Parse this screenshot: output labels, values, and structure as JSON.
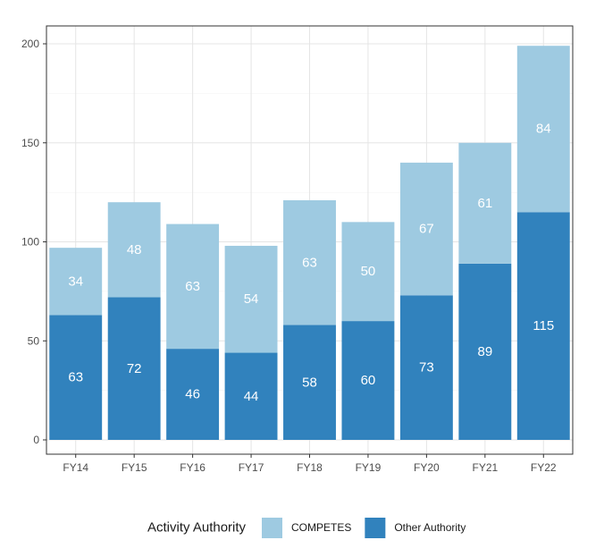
{
  "chart_data": {
    "type": "bar",
    "stacked": true,
    "categories": [
      "FY14",
      "FY15",
      "FY16",
      "FY17",
      "FY18",
      "FY19",
      "FY20",
      "FY21",
      "FY22"
    ],
    "series": [
      {
        "name": "Other Authority",
        "values": [
          63,
          72,
          46,
          44,
          58,
          60,
          73,
          89,
          115
        ],
        "color": "#3182bd"
      },
      {
        "name": "COMPETES",
        "values": [
          34,
          48,
          63,
          54,
          63,
          50,
          67,
          61,
          84
        ],
        "color": "#9ecae1"
      }
    ],
    "title": "",
    "xlabel": "",
    "ylabel": "",
    "ylim": [
      0,
      200
    ],
    "yticks": [
      0,
      50,
      100,
      150,
      200
    ],
    "grid": true,
    "legend": {
      "title": "Activity Authority",
      "placement": "bottom",
      "order": [
        "COMPETES",
        "Other Authority"
      ]
    }
  }
}
